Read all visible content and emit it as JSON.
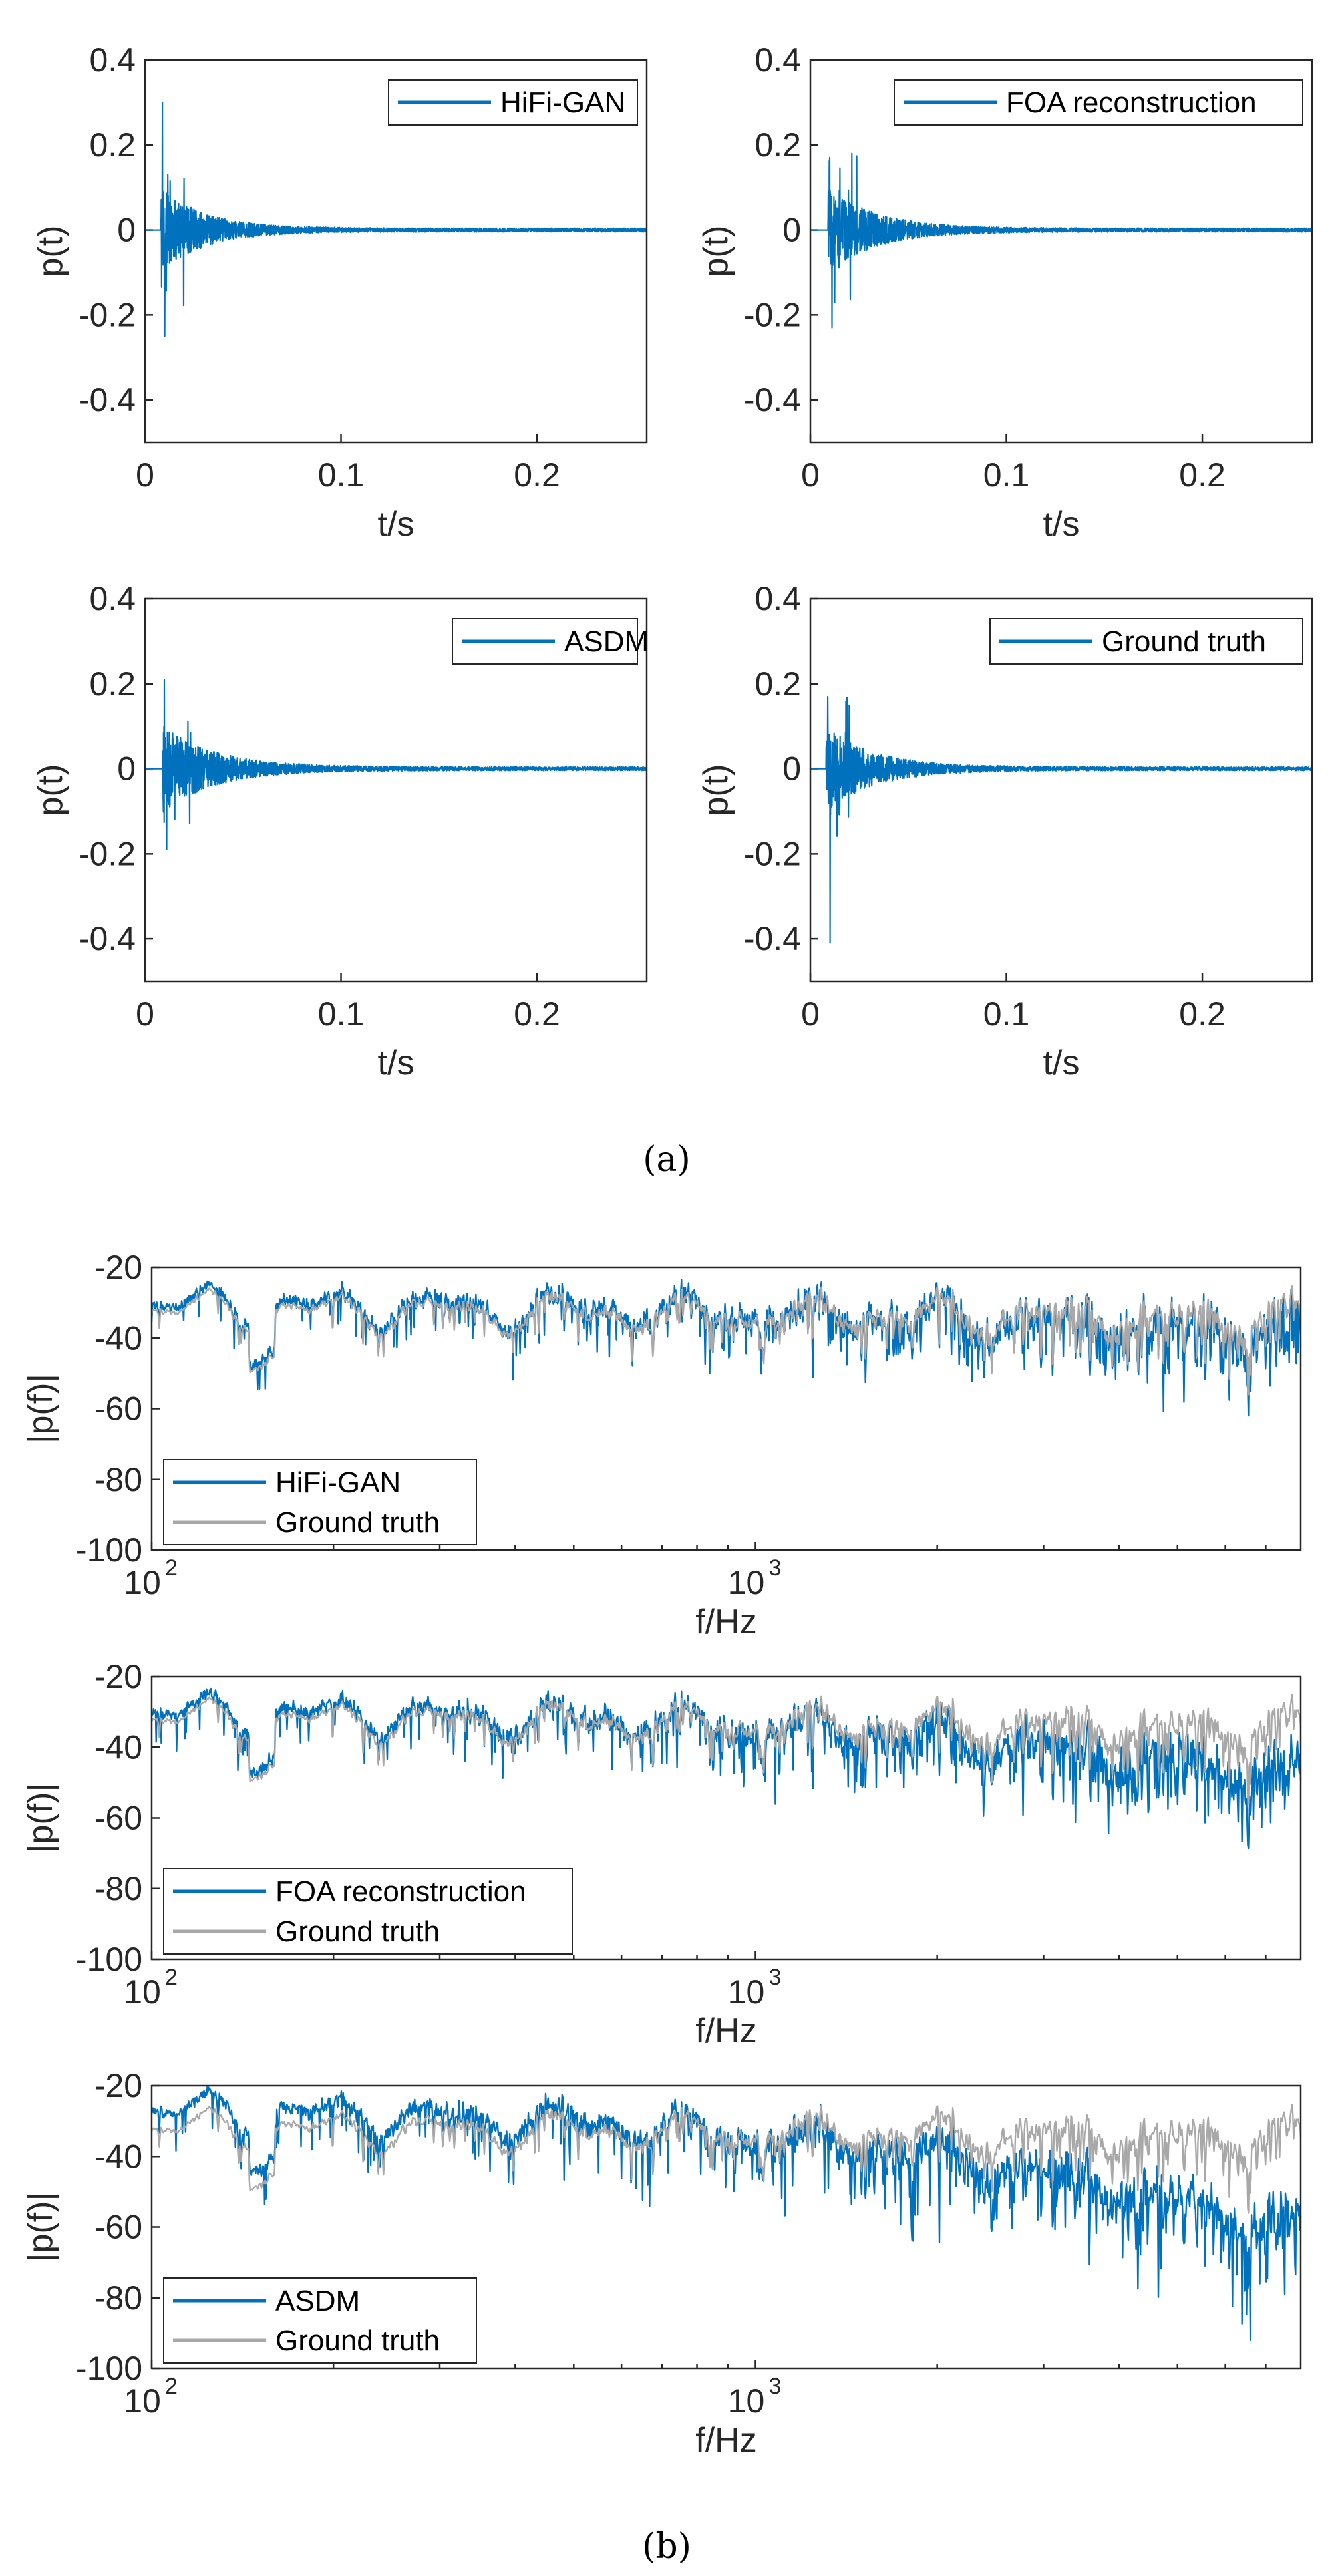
{
  "figure_captions": {
    "a": "(a)",
    "b": "(b)"
  },
  "colors": {
    "series": "#0072BD",
    "ground_truth": "#A8A8A8",
    "axis": "#262626"
  },
  "chart_data": [
    {
      "id": "a1",
      "type": "line",
      "panel": "a",
      "title": "",
      "xlabel": "t/s",
      "ylabel": "p(t)",
      "xlim": [
        0,
        0.256
      ],
      "ylim": [
        -0.5,
        0.4
      ],
      "xticks": [
        0,
        0.1,
        0.2
      ],
      "xtick_labels": [
        "0",
        "0.1",
        "0.2"
      ],
      "yticks": [
        0.4,
        0.2,
        0,
        -0.2,
        -0.4
      ],
      "ytick_labels": [
        "0.4",
        "0.2",
        "0",
        "-0.2",
        "-0.4"
      ],
      "legend": [
        "HiFi-GAN"
      ],
      "legend_position": "top-right",
      "series": [
        {
          "name": "HiFi-GAN",
          "onset": 0.008,
          "peak_max": 0.3,
          "peak_min": -0.25,
          "decay": 0.022
        }
      ]
    },
    {
      "id": "a2",
      "type": "line",
      "panel": "a",
      "title": "",
      "xlabel": "t/s",
      "ylabel": "p(t)",
      "xlim": [
        0,
        0.256
      ],
      "ylim": [
        -0.5,
        0.4
      ],
      "xticks": [
        0,
        0.1,
        0.2
      ],
      "xtick_labels": [
        "0",
        "0.1",
        "0.2"
      ],
      "yticks": [
        0.4,
        0.2,
        0,
        -0.2,
        -0.4
      ],
      "ytick_labels": [
        "0.4",
        "0.2",
        "0",
        "-0.2",
        "-0.4"
      ],
      "legend": [
        "FOA reconstruction"
      ],
      "legend_position": "top-right",
      "series": [
        {
          "name": "FOA reconstruction",
          "onset": 0.009,
          "peak_max": 0.17,
          "peak_min": -0.23,
          "decay": 0.024
        }
      ]
    },
    {
      "id": "a3",
      "type": "line",
      "panel": "a",
      "title": "",
      "xlabel": "t/s",
      "ylabel": "p(t)",
      "xlim": [
        0,
        0.256
      ],
      "ylim": [
        -0.5,
        0.4
      ],
      "xticks": [
        0,
        0.1,
        0.2
      ],
      "xtick_labels": [
        "0",
        "0.1",
        "0.2"
      ],
      "yticks": [
        0.4,
        0.2,
        0,
        -0.2,
        -0.4
      ],
      "ytick_labels": [
        "0.4",
        "0.2",
        "0",
        "-0.2",
        "-0.4"
      ],
      "legend": [
        "ASDM"
      ],
      "legend_position": "top-right",
      "series": [
        {
          "name": "ASDM",
          "onset": 0.009,
          "peak_max": 0.21,
          "peak_min": -0.19,
          "decay": 0.026
        }
      ]
    },
    {
      "id": "a4",
      "type": "line",
      "panel": "a",
      "title": "",
      "xlabel": "t/s",
      "ylabel": "p(t)",
      "xlim": [
        0,
        0.256
      ],
      "ylim": [
        -0.5,
        0.4
      ],
      "xticks": [
        0,
        0.1,
        0.2
      ],
      "xtick_labels": [
        "0",
        "0.1",
        "0.2"
      ],
      "yticks": [
        0.4,
        0.2,
        0,
        -0.2,
        -0.4
      ],
      "ytick_labels": [
        "0.4",
        "0.2",
        "0",
        "-0.2",
        "-0.4"
      ],
      "legend": [
        "Ground truth"
      ],
      "legend_position": "top-right",
      "series": [
        {
          "name": "Ground truth",
          "onset": 0.008,
          "peak_max": 0.17,
          "peak_min": -0.41,
          "decay": 0.024
        }
      ]
    },
    {
      "id": "b1",
      "type": "line",
      "panel": "b",
      "title": "",
      "xlabel": "f/Hz",
      "ylabel": "|p(f)|",
      "xscale": "log",
      "xlim": [
        100,
        8000
      ],
      "ylim": [
        -100,
        -20
      ],
      "xticks": [
        100,
        1000
      ],
      "xtick_labels": [
        "10",
        "10"
      ],
      "xtick_exponents": [
        "2",
        "3"
      ],
      "yticks": [
        -20,
        -40,
        -60,
        -80,
        -100
      ],
      "ytick_labels": [
        "-20",
        "-40",
        "-60",
        "-80",
        "-100"
      ],
      "legend": [
        "HiFi-GAN",
        "Ground truth"
      ],
      "legend_position": "bottom-left",
      "series": [
        {
          "name": "HiFi-GAN",
          "offset_db": 1.5,
          "hf_rolloff_db": 4
        },
        {
          "name": "Ground truth",
          "offset_db": 0,
          "hf_rolloff_db": 0
        }
      ]
    },
    {
      "id": "b2",
      "type": "line",
      "panel": "b",
      "title": "",
      "xlabel": "f/Hz",
      "ylabel": "|p(f)|",
      "xscale": "log",
      "xlim": [
        100,
        8000
      ],
      "ylim": [
        -100,
        -20
      ],
      "xticks": [
        100,
        1000
      ],
      "xtick_labels": [
        "10",
        "10"
      ],
      "xtick_exponents": [
        "2",
        "3"
      ],
      "yticks": [
        -20,
        -40,
        -60,
        -80,
        -100
      ],
      "ytick_labels": [
        "-20",
        "-40",
        "-60",
        "-80",
        "-100"
      ],
      "legend": [
        "FOA reconstruction",
        "Ground truth"
      ],
      "legend_position": "bottom-left",
      "series": [
        {
          "name": "FOA reconstruction",
          "offset_db": 2,
          "hf_rolloff_db": 14
        },
        {
          "name": "Ground truth",
          "offset_db": 0,
          "hf_rolloff_db": 0
        }
      ]
    },
    {
      "id": "b3",
      "type": "line",
      "panel": "b",
      "title": "",
      "xlabel": "f/Hz",
      "ylabel": "|p(f)|",
      "xscale": "log",
      "xlim": [
        100,
        8000
      ],
      "ylim": [
        -100,
        -20
      ],
      "xticks": [
        100,
        1000
      ],
      "xtick_labels": [
        "10",
        "10"
      ],
      "xtick_exponents": [
        "2",
        "3"
      ],
      "yticks": [
        -20,
        -40,
        -60,
        -80,
        -100
      ],
      "ytick_labels": [
        "-20",
        "-40",
        "-60",
        "-80",
        "-100"
      ],
      "legend": [
        "ASDM",
        "Ground truth"
      ],
      "legend_position": "bottom-left",
      "series": [
        {
          "name": "ASDM",
          "offset_db": 5,
          "hf_rolloff_db": 28
        },
        {
          "name": "Ground truth",
          "offset_db": 0,
          "hf_rolloff_db": 0
        }
      ]
    }
  ]
}
